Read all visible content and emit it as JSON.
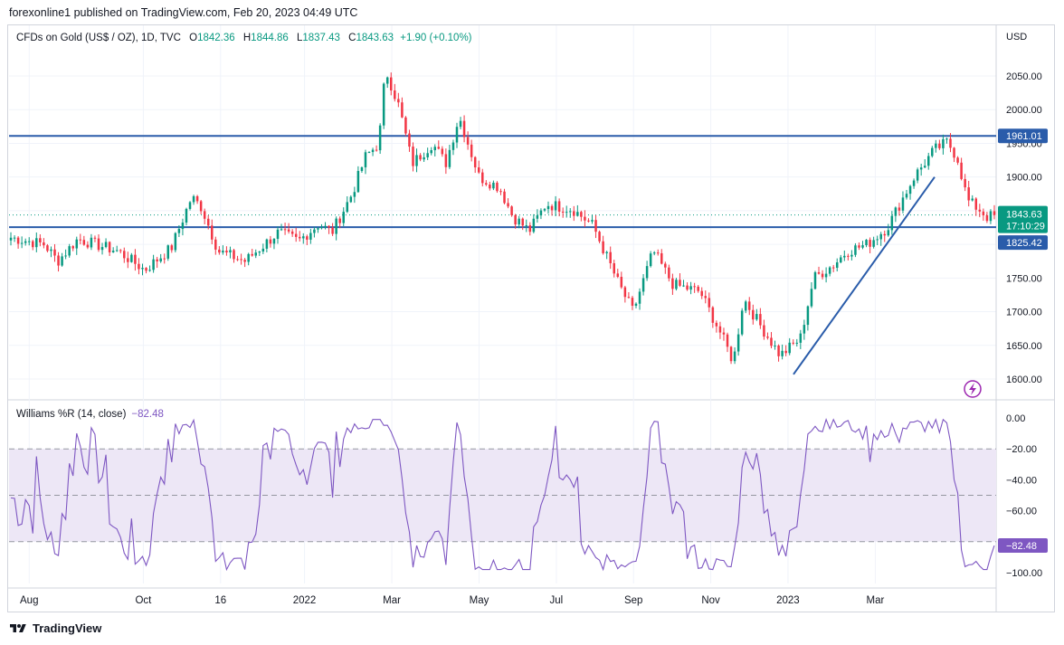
{
  "header": {
    "published_by": "forexonline1 published on TradingView.com, Feb 20, 2023 04:49 UTC"
  },
  "legend": {
    "symbol": "CFDs on Gold (US$ / OZ), 1D, TVC",
    "o_label": "O",
    "o_value": "1842.36",
    "h_label": "H",
    "h_value": "1844.86",
    "l_label": "L",
    "l_value": "1837.43",
    "c_label": "C",
    "c_value": "1843.63",
    "change": "+1.90 (+0.10%)"
  },
  "currency": "USD",
  "indicator": {
    "name": "Williams %R (14, close)",
    "value": "−82.48"
  },
  "footer": {
    "brand": "TradingView"
  },
  "colors": {
    "up": "#089981",
    "down": "#f23645",
    "trendline": "#2a5caa",
    "wr_line": "#7e57c2",
    "wr_band": "#ede7f6",
    "wr_tag": "#7e57c2"
  },
  "icons": {
    "logo": "tradingview-logo-icon",
    "alert": "lightning-icon"
  },
  "chart_data": [
    {
      "type": "candlestick",
      "title": "CFDs on Gold (US$ / OZ), 1D, TVC",
      "x_tick_labels": [
        "Aug",
        "Oct",
        "16",
        "2022",
        "Mar",
        "May",
        "Jul",
        "Sep",
        "Nov",
        "2023",
        "Mar"
      ],
      "x_ticks_index": [
        6,
        40,
        63,
        88,
        114,
        140,
        163,
        186,
        209,
        232,
        258
      ],
      "y_tick_labels": [
        "2050.00",
        "2000.00",
        "1950.00",
        "1900.00",
        "1850.00",
        "1800.00",
        "1750.00",
        "1700.00",
        "1650.00",
        "1600.00"
      ],
      "y_ticks": [
        2050,
        2000,
        1950,
        1900,
        1850,
        1800,
        1750,
        1700,
        1650,
        1600
      ],
      "ylim": [
        1572,
        2080
      ],
      "num_candles": 270,
      "close_path": [
        [
          0,
          1810
        ],
        [
          10,
          1800
        ],
        [
          14,
          1775
        ],
        [
          20,
          1808
        ],
        [
          32,
          1790
        ],
        [
          40,
          1762
        ],
        [
          48,
          1795
        ],
        [
          54,
          1870
        ],
        [
          57,
          1855
        ],
        [
          62,
          1790
        ],
        [
          70,
          1775
        ],
        [
          80,
          1818
        ],
        [
          86,
          1805
        ],
        [
          92,
          1830
        ],
        [
          96,
          1818
        ],
        [
          102,
          1875
        ],
        [
          106,
          1930
        ],
        [
          110,
          1950
        ],
        [
          112,
          2060
        ],
        [
          116,
          2005
        ],
        [
          120,
          1920
        ],
        [
          126,
          1950
        ],
        [
          130,
          1920
        ],
        [
          134,
          1990
        ],
        [
          140,
          1900
        ],
        [
          146,
          1885
        ],
        [
          150,
          1842
        ],
        [
          155,
          1820
        ],
        [
          160,
          1860
        ],
        [
          168,
          1852
        ],
        [
          174,
          1828
        ],
        [
          182,
          1738
        ],
        [
          186,
          1700
        ],
        [
          192,
          1790
        ],
        [
          198,
          1740
        ],
        [
          206,
          1730
        ],
        [
          212,
          1670
        ],
        [
          216,
          1625
        ],
        [
          219,
          1720
        ],
        [
          224,
          1680
        ],
        [
          230,
          1635
        ],
        [
          236,
          1660
        ],
        [
          240,
          1750
        ],
        [
          246,
          1770
        ],
        [
          250,
          1790
        ],
        [
          256,
          1800
        ],
        [
          262,
          1825
        ],
        [
          270,
          1900
        ],
        [
          276,
          1940
        ],
        [
          280,
          1952
        ],
        [
          283,
          1928
        ],
        [
          286,
          1865
        ],
        [
          290,
          1850
        ],
        [
          292,
          1840
        ],
        [
          294,
          1843.63
        ]
      ],
      "close_path_x_units": "candle index",
      "last_ohlc": {
        "open": 1842.36,
        "high": 1844.86,
        "low": 1837.43,
        "close": 1843.63
      },
      "horizontal_levels": [
        1961.01,
        1825.42
      ],
      "price_tags": [
        "1961.01",
        "1843.63",
        "17:10:29",
        "1825.42"
      ],
      "trendline": {
        "from": [
          1012,
          1607
        ],
        "to": [
          1032,
          1900
        ],
        "note": ""
      },
      "current_price_dotted": 1843.63
    },
    {
      "type": "line",
      "title": "Williams %R (14, close)",
      "y_tick_labels": [
        "0.00",
        "−20.00",
        "−40.00",
        "−60.00",
        "−80.00",
        "−100.00"
      ],
      "y_ticks": [
        0,
        -20,
        -40,
        -60,
        -80,
        -100
      ],
      "ylim": [
        -106,
        4
      ],
      "band": [
        -20,
        -80
      ],
      "dashed_levels": [
        -20,
        -50,
        -80
      ],
      "last_value": -82.48,
      "last_tag": "−82.48"
    }
  ]
}
